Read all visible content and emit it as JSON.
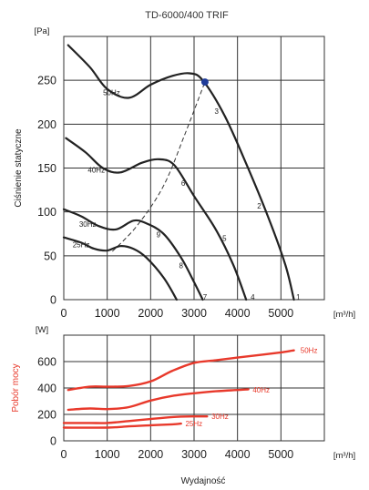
{
  "title": "TD-6000/400 TRIF",
  "colors": {
    "pressure": "#222222",
    "power": "#e8392b",
    "point": "#1f3c99",
    "grid": "#333333"
  },
  "chart_data": [
    {
      "type": "line",
      "title": "TD-6000/400 TRIF",
      "ylabel": "Ciśnienie statyczne",
      "y_unit": "[Pa]",
      "x_unit": "[m³/h]",
      "xlim": [
        0,
        6000
      ],
      "ylim": [
        0,
        300
      ],
      "x_ticks": [
        "0",
        "1000",
        "2000",
        "3000",
        "4000",
        "5000"
      ],
      "y_ticks": [
        "0",
        "50",
        "100",
        "150",
        "200",
        "250"
      ],
      "grid": true,
      "series": [
        {
          "name": "50Hz",
          "points": [
            [
              100,
              290
            ],
            [
              600,
              265
            ],
            [
              1000,
              240
            ],
            [
              1500,
              230
            ],
            [
              2000,
              245
            ],
            [
              2500,
              255
            ],
            [
              2900,
              258
            ],
            [
              3200,
              250
            ],
            [
              3700,
              210
            ],
            [
              4200,
              155
            ],
            [
              4700,
              95
            ],
            [
              5100,
              40
            ],
            [
              5300,
              0
            ]
          ]
        },
        {
          "name": "40Hz",
          "points": [
            [
              50,
              184
            ],
            [
              500,
              168
            ],
            [
              900,
              150
            ],
            [
              1300,
              145
            ],
            [
              1800,
              156
            ],
            [
              2200,
              160
            ],
            [
              2550,
              153
            ],
            [
              3000,
              118
            ],
            [
              3500,
              80
            ],
            [
              3900,
              40
            ],
            [
              4200,
              0
            ]
          ]
        },
        {
          "name": "30Hz",
          "points": [
            [
              0,
              103
            ],
            [
              400,
              95
            ],
            [
              800,
              84
            ],
            [
              1200,
              80
            ],
            [
              1600,
              90
            ],
            [
              1900,
              87
            ],
            [
              2300,
              75
            ],
            [
              2700,
              48
            ],
            [
              3000,
              20
            ],
            [
              3200,
              0
            ]
          ]
        },
        {
          "name": "25Hz",
          "points": [
            [
              0,
              71
            ],
            [
              400,
              65
            ],
            [
              700,
              58
            ],
            [
              1000,
              56
            ],
            [
              1300,
              61
            ],
            [
              1600,
              58
            ],
            [
              1900,
              48
            ],
            [
              2300,
              25
            ],
            [
              2600,
              0
            ]
          ]
        }
      ],
      "system_curve": {
        "points": [
          [
            1120,
            55
          ],
          [
            1700,
            85
          ],
          [
            2300,
            130
          ],
          [
            2800,
            190
          ],
          [
            3250,
            248
          ]
        ]
      },
      "operating_point": {
        "x": 3250,
        "y": 248
      },
      "curve_numbers": [
        {
          "label": "1",
          "x": 5400,
          "y": 3
        },
        {
          "label": "2",
          "x": 4500,
          "y": 107
        },
        {
          "label": "3",
          "x": 3520,
          "y": 215
        },
        {
          "label": "4",
          "x": 4350,
          "y": 3
        },
        {
          "label": "5",
          "x": 3700,
          "y": 70
        },
        {
          "label": "6",
          "x": 2750,
          "y": 133
        },
        {
          "label": "7",
          "x": 3250,
          "y": 3
        },
        {
          "label": "8",
          "x": 2700,
          "y": 39
        },
        {
          "label": "9",
          "x": 2180,
          "y": 74
        }
      ],
      "curve_labels": [
        {
          "label": "50Hz",
          "x": 1100,
          "y": 236
        },
        {
          "label": "40Hz",
          "x": 750,
          "y": 148
        },
        {
          "label": "30Hz",
          "x": 550,
          "y": 86
        },
        {
          "label": "25Hz",
          "x": 400,
          "y": 63
        }
      ]
    },
    {
      "type": "line",
      "ylabel": "Pobór mocy",
      "y_unit": "[W]",
      "x_unit": "[m³/h]",
      "xlabel": "Wydajność",
      "xlim": [
        0,
        6000
      ],
      "ylim": [
        0,
        800
      ],
      "x_ticks": [
        "0",
        "1000",
        "2000",
        "3000",
        "4000",
        "5000"
      ],
      "y_ticks": [
        "0",
        "200",
        "400",
        "600"
      ],
      "grid": true,
      "series": [
        {
          "name": "50Hz",
          "points": [
            [
              100,
              385
            ],
            [
              600,
              410
            ],
            [
              1000,
              410
            ],
            [
              1500,
              415
            ],
            [
              2000,
              450
            ],
            [
              2500,
              530
            ],
            [
              3000,
              590
            ],
            [
              3500,
              610
            ],
            [
              4000,
              630
            ],
            [
              4500,
              650
            ],
            [
              5000,
              670
            ],
            [
              5300,
              685
            ]
          ]
        },
        {
          "name": "40Hz",
          "points": [
            [
              100,
              235
            ],
            [
              600,
              245
            ],
            [
              1000,
              240
            ],
            [
              1500,
              255
            ],
            [
              2000,
              305
            ],
            [
              2500,
              340
            ],
            [
              3000,
              360
            ],
            [
              3500,
              375
            ],
            [
              4000,
              385
            ],
            [
              4250,
              390
            ]
          ]
        },
        {
          "name": "30Hz",
          "points": [
            [
              0,
              135
            ],
            [
              600,
              135
            ],
            [
              1000,
              135
            ],
            [
              1500,
              150
            ],
            [
              2000,
              165
            ],
            [
              2500,
              180
            ],
            [
              3000,
              185
            ],
            [
              3300,
              185
            ]
          ]
        },
        {
          "name": "25Hz",
          "points": [
            [
              0,
              100
            ],
            [
              1000,
              100
            ],
            [
              1500,
              110
            ],
            [
              2000,
              118
            ],
            [
              2500,
              125
            ],
            [
              2700,
              130
            ]
          ]
        }
      ],
      "curve_labels": [
        {
          "label": "50Hz",
          "x": 5450,
          "y": 685
        },
        {
          "label": "40Hz",
          "x": 4350,
          "y": 385
        },
        {
          "label": "30Hz",
          "x": 3400,
          "y": 185
        },
        {
          "label": "25Hz",
          "x": 2800,
          "y": 130
        }
      ]
    }
  ]
}
